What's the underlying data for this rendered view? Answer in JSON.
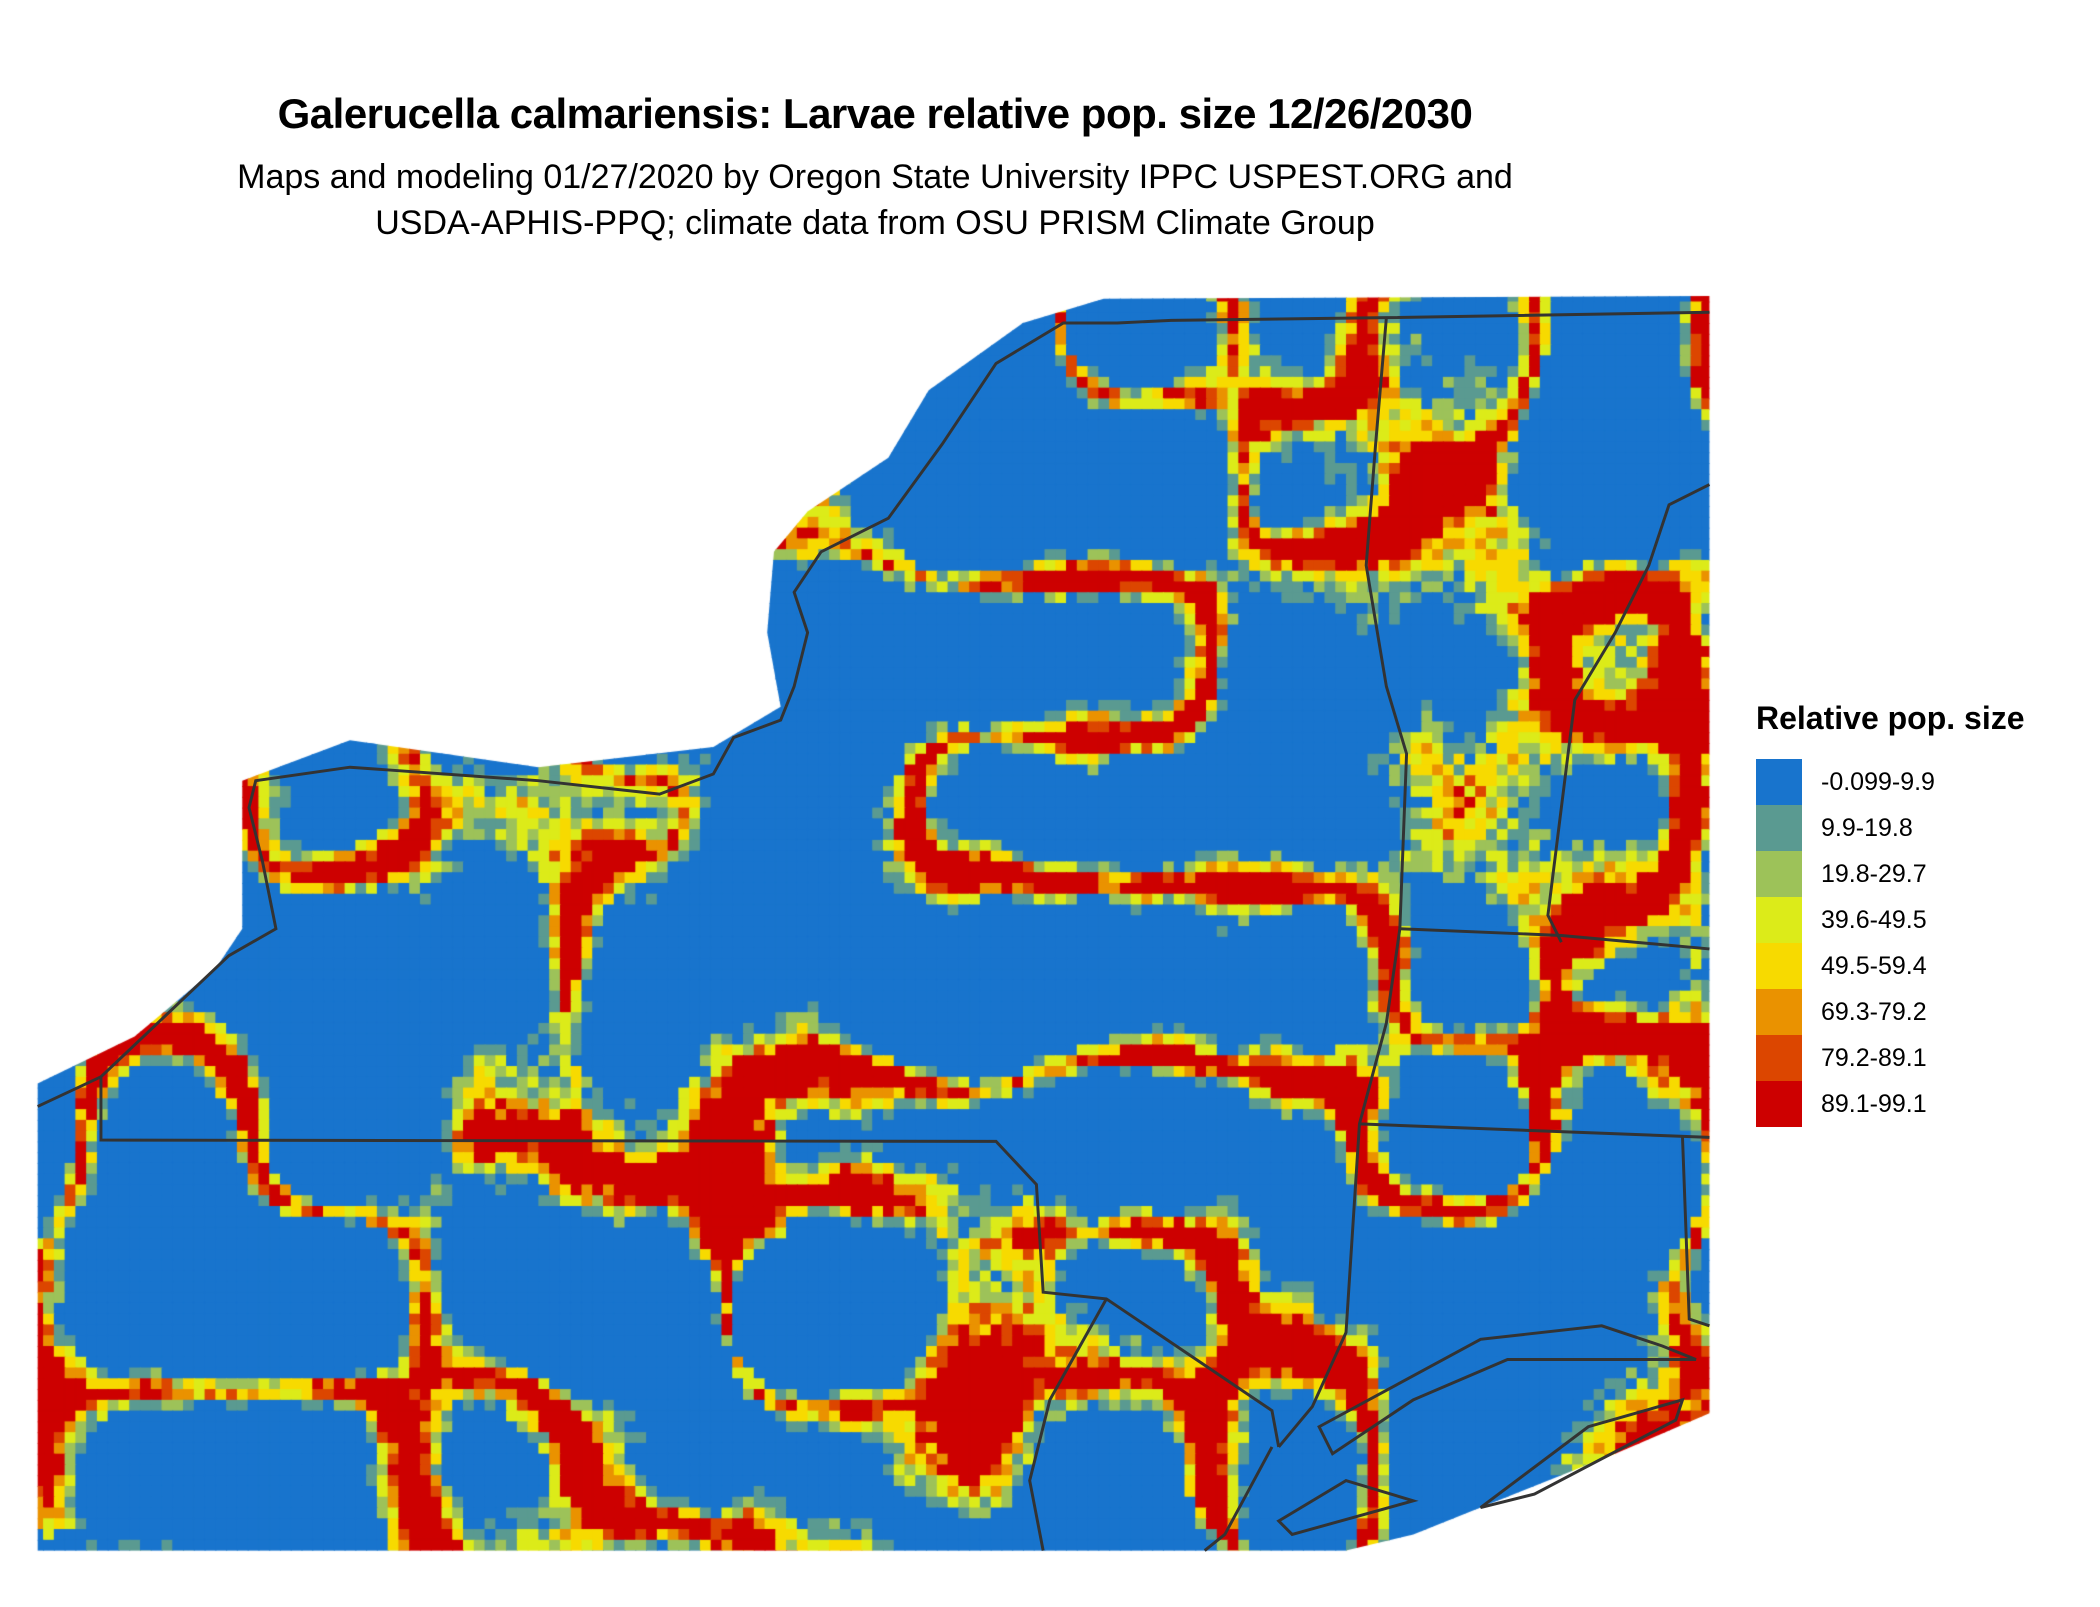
{
  "title": "Galerucella calmariensis: Larvae relative pop. size 12/26/2030",
  "subtitle_line1": "Maps and modeling 01/27/2020 by Oregon State University IPPC USPEST.ORG and",
  "subtitle_line2": "USDA-APHIS-PPQ; climate data from OSU PRISM Climate Group",
  "legend": {
    "title": "Relative pop. size",
    "items": [
      {
        "label": "-0.099-9.9",
        "color": "#1874CD"
      },
      {
        "label": "9.9-19.8",
        "color": "#5A9A91"
      },
      {
        "label": "19.8-29.7",
        "color": "#9DC259"
      },
      {
        "label": "39.6-49.5",
        "color": "#DCEB19"
      },
      {
        "label": "49.5-59.4",
        "color": "#F7DA00"
      },
      {
        "label": "69.3-79.2",
        "color": "#EA9200"
      },
      {
        "label": "79.2-89.1",
        "color": "#DC4600"
      },
      {
        "label": "89.1-99.1",
        "color": "#CD0000"
      }
    ]
  },
  "map": {
    "border_color": "#333333"
  }
}
